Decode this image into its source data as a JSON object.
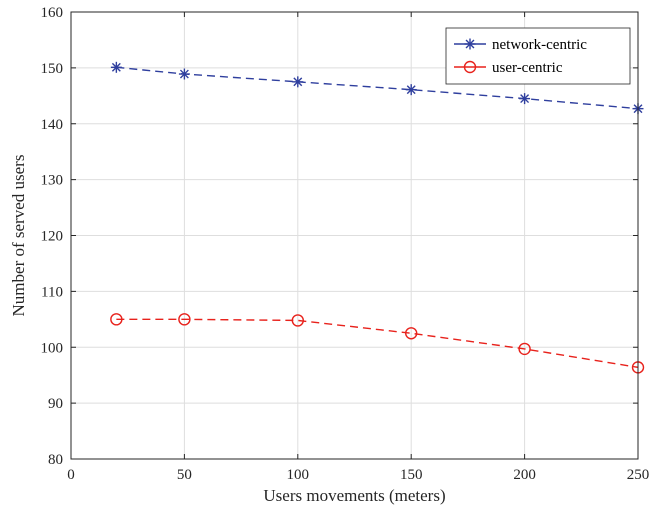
{
  "chart_data": {
    "type": "line",
    "xlabel": "Users movements (meters)",
    "ylabel": "Number of served users",
    "xlim": [
      0,
      250
    ],
    "ylim": [
      80,
      160
    ],
    "xticks": [
      0,
      50,
      100,
      150,
      200,
      250
    ],
    "yticks": [
      80,
      90,
      100,
      110,
      120,
      130,
      140,
      150,
      160
    ],
    "grid": true,
    "legend_position": "top-right",
    "x": [
      20,
      50,
      100,
      150,
      200,
      250
    ],
    "series": [
      {
        "name": "network-centric",
        "values": [
          150.1,
          148.9,
          147.5,
          146.1,
          144.5,
          142.7
        ],
        "color": "#2f3f9e",
        "marker": "asterisk",
        "line_style": "dashed"
      },
      {
        "name": "user-centric",
        "values": [
          105.0,
          105.0,
          104.8,
          102.5,
          99.7,
          96.4
        ],
        "color": "#e8221c",
        "marker": "circle",
        "line_style": "dashed"
      }
    ]
  }
}
